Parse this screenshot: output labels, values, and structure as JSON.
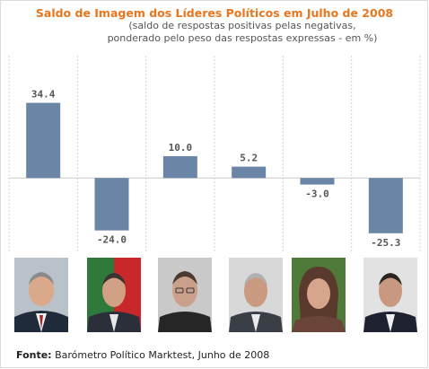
{
  "chart_data": {
    "type": "bar",
    "title": "Saldo de Imagem dos Líderes Políticos em Julho de 2008",
    "subtitle_lines": [
      "(saldo de respostas positivas pelas negativas,",
      "ponderado pelo peso das respostas expressas - em %)"
    ],
    "values": [
      34.4,
      -24.0,
      10.0,
      5.2,
      -3.0,
      -25.3
    ],
    "value_labels": [
      "34.4",
      "-24.0",
      "10.0",
      "5.2",
      "-3.0",
      "-25.3"
    ],
    "ylim": [
      -34,
      56
    ],
    "bar_color": "#6b85a6",
    "grid": true
  },
  "source": {
    "label": "Fonte:",
    "text": "Barómetro Político Marktest, Junho de 2008"
  },
  "portraits": [
    "leader-portrait-1",
    "leader-portrait-2",
    "leader-portrait-3",
    "leader-portrait-4",
    "leader-portrait-5",
    "leader-portrait-6"
  ]
}
